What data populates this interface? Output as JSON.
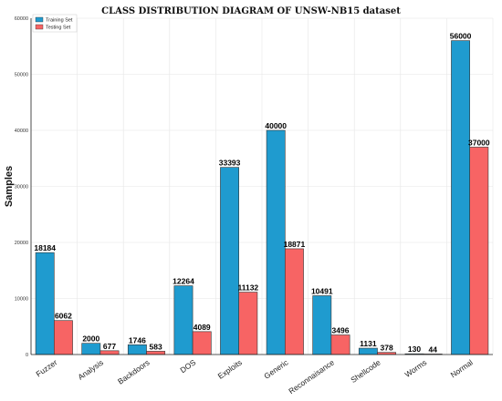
{
  "chart_data": {
    "type": "bar",
    "title": "CLASS DISTRIBUTION DIAGRAM OF UNSW-NB15 dataset",
    "xlabel": "",
    "ylabel": "Samples",
    "ylim": [
      0,
      60000
    ],
    "yticks": [
      "0",
      "10000",
      "20000",
      "30000",
      "40000",
      "50000",
      "60000"
    ],
    "grid": true,
    "legend_position": "top-left",
    "categories": [
      "Fuzzer",
      "Analysis",
      "Backdoors",
      "DOS",
      "Exploits",
      "Generic",
      "Reconnaisance",
      "Shellcode",
      "Worms",
      "Normal"
    ],
    "series": [
      {
        "name": "Training Set",
        "color": "#1f9bcf",
        "values": [
          18184,
          2000,
          1746,
          12264,
          33393,
          40000,
          10491,
          1131,
          130,
          56000
        ]
      },
      {
        "name": "Testing Set",
        "color": "#f76464",
        "values": [
          6062,
          677,
          583,
          4089,
          11132,
          18871,
          3496,
          378,
          44,
          37000
        ]
      }
    ]
  }
}
